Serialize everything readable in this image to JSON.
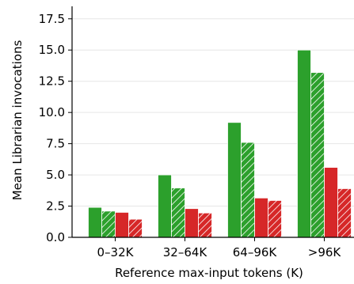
{
  "chart_data": {
    "type": "bar",
    "title": "",
    "xlabel": "Reference max-input tokens (K)",
    "ylabel": "Mean Librarian invocations",
    "categories": [
      "0–32K",
      "32–64K",
      "64–96K",
      ">96K"
    ],
    "ylim": [
      0,
      18.5
    ],
    "yticks": [
      "0.0",
      "2.5",
      "5.0",
      "7.5",
      "10.0",
      "12.5",
      "15.0",
      "17.5"
    ],
    "ytick_values": [
      0,
      2.5,
      5,
      7.5,
      10,
      12.5,
      15,
      17.5
    ],
    "grid": true,
    "legend": "none",
    "series": [
      {
        "color": "#2ca02c",
        "hatch": false,
        "values": [
          2.4,
          5.0,
          9.2,
          15.0
        ]
      },
      {
        "color": "#2ca02c",
        "hatch": true,
        "values": [
          2.1,
          3.95,
          7.6,
          13.2
        ]
      },
      {
        "color": "#d62728",
        "hatch": false,
        "values": [
          2.0,
          2.3,
          3.15,
          5.6
        ]
      },
      {
        "color": "#d62728",
        "hatch": true,
        "values": [
          1.45,
          1.95,
          2.95,
          3.9
        ]
      }
    ]
  }
}
